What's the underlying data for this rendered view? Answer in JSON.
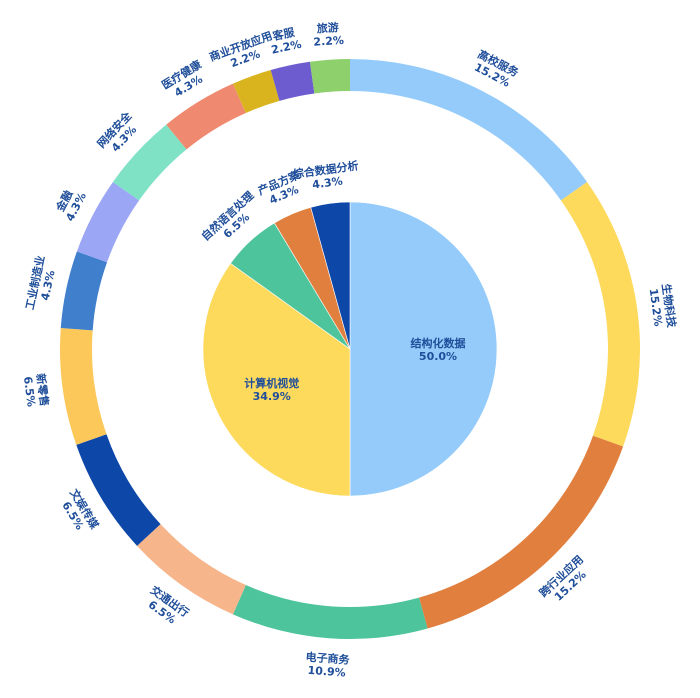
{
  "chart_data": [
    {
      "type": "pie",
      "title": "",
      "unit": "%",
      "slices": [
        {
          "label": "结构化数据",
          "value": 50.0,
          "value_text": "50.0%",
          "color": "#94cbfa"
        },
        {
          "label": "计算机视觉",
          "value": 34.9,
          "value_text": "34.9%",
          "color": "#fdd95c"
        },
        {
          "label": "自然语言处理",
          "value": 6.5,
          "value_text": "6.5%",
          "color": "#4dc49c"
        },
        {
          "label": "产品方案",
          "value": 4.3,
          "value_text": "4.3%",
          "color": "#e07f3e"
        },
        {
          "label": "综合数据分析",
          "value": 4.3,
          "value_text": "4.3%",
          "color": "#0d47a8"
        }
      ]
    },
    {
      "type": "pie",
      "subtype": "donut",
      "title": "",
      "unit": "%",
      "slices": [
        {
          "label": "高校服务",
          "value": 15.2,
          "value_text": "15.2%",
          "color": "#94cbfa"
        },
        {
          "label": "生物科技",
          "value": 15.2,
          "value_text": "15.2%",
          "color": "#fdd95c"
        },
        {
          "label": "跨行业应用",
          "value": 15.2,
          "value_text": "15.2%",
          "color": "#e07f3e"
        },
        {
          "label": "电子商务",
          "value": 10.9,
          "value_text": "10.9%",
          "color": "#4dc49c"
        },
        {
          "label": "交通出行",
          "value": 6.5,
          "value_text": "6.5%",
          "color": "#f7b58b"
        },
        {
          "label": "文娱传媒",
          "value": 6.5,
          "value_text": "6.5%",
          "color": "#0d47a8"
        },
        {
          "label": "新零售",
          "value": 6.5,
          "value_text": "6.5%",
          "color": "#fdc85a"
        },
        {
          "label": "工业制造业",
          "value": 4.3,
          "value_text": "4.3%",
          "color": "#3f7fcc"
        },
        {
          "label": "金融",
          "value": 4.3,
          "value_text": "4.3%",
          "color": "#9ba7f5"
        },
        {
          "label": "网络安全",
          "value": 4.3,
          "value_text": "4.3%",
          "color": "#7fe2c5"
        },
        {
          "label": "医疗健康",
          "value": 4.3,
          "value_text": "4.3%",
          "color": "#ef8a70"
        },
        {
          "label": "商业开放应用",
          "value": 2.2,
          "value_text": "2.2%",
          "color": "#d9b41f"
        },
        {
          "label": "客服",
          "value": 2.2,
          "value_text": "2.2%",
          "color": "#6c5ccf"
        },
        {
          "label": "旅游",
          "value": 2.2,
          "value_text": "2.2%",
          "color": "#8ed06c"
        }
      ]
    }
  ]
}
